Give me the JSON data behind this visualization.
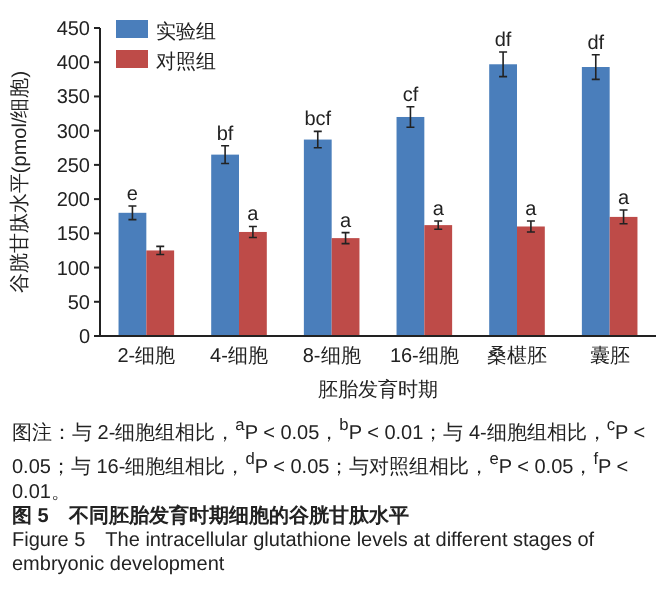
{
  "chart_data": {
    "type": "bar",
    "title": "图 5　不同胚胎发育时期细胞的谷胱甘肽水平",
    "subtitle": "Figure 5　The intracellular glutathione levels at different stages of embryonic development",
    "xlabel": "胚胎发育时期",
    "ylabel": "谷胱甘肽水平(pmol/细胞)",
    "categories": [
      "2-细胞",
      "4-细胞",
      "8-细胞",
      "16-细胞",
      "桑椹胚",
      "囊胚"
    ],
    "series": [
      {
        "name": "实验组",
        "color": "#4a7ebb",
        "values": [
          180,
          265,
          287,
          320,
          397,
          393
        ],
        "errors": [
          10,
          13,
          12,
          15,
          18,
          18
        ]
      },
      {
        "name": "对照组",
        "color": "#be4b48",
        "values": [
          125,
          152,
          143,
          162,
          160,
          174
        ],
        "errors": [
          6,
          8,
          8,
          6,
          8,
          10
        ]
      }
    ],
    "ylim": [
      0,
      450
    ],
    "yticks": [
      0,
      50,
      100,
      150,
      200,
      250,
      300,
      350,
      400,
      450
    ],
    "grid": false,
    "legend": "top left",
    "annotations": [
      {
        "text": "e",
        "x": "2-细胞",
        "y": 180
      },
      {
        "text": "bf",
        "x": "4-细胞",
        "y": 265
      },
      {
        "text": "bcf",
        "x": "8-细胞",
        "y": 287
      },
      {
        "text": "cf",
        "x": "16-细胞",
        "y": 320
      },
      {
        "text": "df",
        "x": "桑椹胚",
        "y": 397
      },
      {
        "text": "df",
        "x": "囊胚",
        "y": 393
      },
      {
        "text": "a",
        "x": "4-细胞",
        "y": 152
      },
      {
        "text": "a",
        "x": "8-细胞",
        "y": 143
      },
      {
        "text": "a",
        "x": "16-细胞",
        "y": 162
      },
      {
        "text": "a",
        "x": "桑椹胚",
        "y": 160
      },
      {
        "text": "a",
        "x": "囊胚",
        "y": 174
      },
      "图注：与 2-细胞组相比，$^{a}$P < 0.05，$^{b}$P < 0.01；与 4-细胞组相比，$^{c}$P < 0.05；与 16-细胞组相比，$^{d}$P < 0.05；与对照组相比，$^{e}$P < 0.05，$^{f}$P < 0.01。"
    ]
  }
}
